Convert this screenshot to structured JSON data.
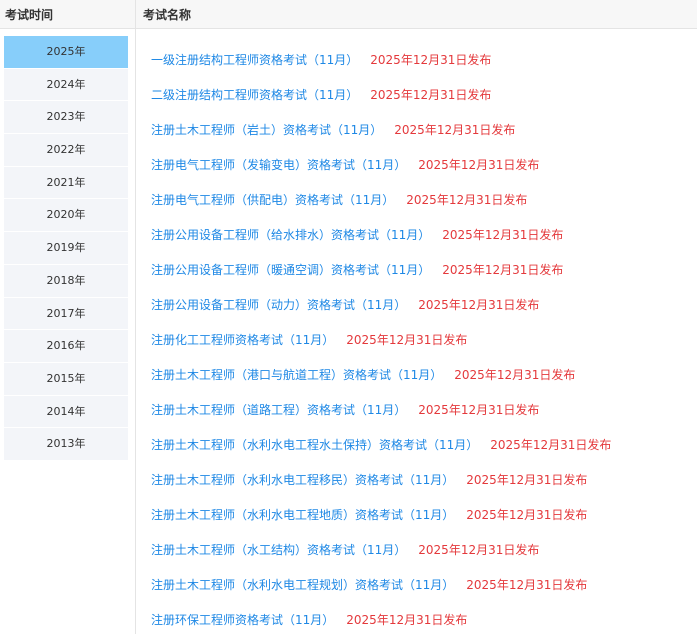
{
  "header": {
    "col_time": "考试时间",
    "col_name": "考试名称"
  },
  "years": [
    {
      "label": "2025年",
      "active": true
    },
    {
      "label": "2024年"
    },
    {
      "label": "2023年"
    },
    {
      "label": "2022年"
    },
    {
      "label": "2021年"
    },
    {
      "label": "2020年"
    },
    {
      "label": "2019年"
    },
    {
      "label": "2018年"
    },
    {
      "label": "2017年"
    },
    {
      "label": "2016年"
    },
    {
      "label": "2015年"
    },
    {
      "label": "2014年"
    },
    {
      "label": "2013年"
    }
  ],
  "exams": [
    {
      "name": "一级注册结构工程师资格考试（11月）",
      "date": "2025年12月31日发布"
    },
    {
      "name": "二级注册结构工程师资格考试（11月）",
      "date": "2025年12月31日发布"
    },
    {
      "name": "注册土木工程师（岩土）资格考试（11月）",
      "date": "2025年12月31日发布"
    },
    {
      "name": "注册电气工程师（发输变电）资格考试（11月）",
      "date": "2025年12月31日发布"
    },
    {
      "name": "注册电气工程师（供配电）资格考试（11月）",
      "date": "2025年12月31日发布"
    },
    {
      "name": "注册公用设备工程师（给水排水）资格考试（11月）",
      "date": "2025年12月31日发布"
    },
    {
      "name": "注册公用设备工程师（暖通空调）资格考试（11月）",
      "date": "2025年12月31日发布"
    },
    {
      "name": "注册公用设备工程师（动力）资格考试（11月）",
      "date": "2025年12月31日发布"
    },
    {
      "name": "注册化工工程师资格考试（11月）",
      "date": "2025年12月31日发布"
    },
    {
      "name": "注册土木工程师（港口与航道工程）资格考试（11月）",
      "date": "2025年12月31日发布"
    },
    {
      "name": "注册土木工程师（道路工程）资格考试（11月）",
      "date": "2025年12月31日发布"
    },
    {
      "name": "注册土木工程师（水利水电工程水土保持）资格考试（11月）",
      "date": "2025年12月31日发布"
    },
    {
      "name": "注册土木工程师（水利水电工程移民）资格考试（11月）",
      "date": "2025年12月31日发布"
    },
    {
      "name": "注册土木工程师（水利水电工程地质）资格考试（11月）",
      "date": "2025年12月31日发布"
    },
    {
      "name": "注册土木工程师（水工结构）资格考试（11月）",
      "date": "2025年12月31日发布"
    },
    {
      "name": "注册土木工程师（水利水电工程规划）资格考试（11月）",
      "date": "2025年12月31日发布"
    },
    {
      "name": "注册环保工程师资格考试（11月）",
      "date": "2025年12月31日发布"
    }
  ],
  "colors": {
    "link": "#1e88e5",
    "date": "#e4393c",
    "active_year": "#87cefa"
  }
}
